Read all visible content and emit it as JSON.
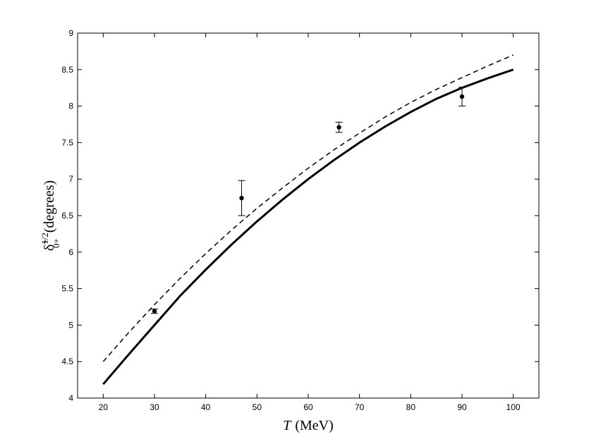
{
  "chart_data": {
    "type": "line",
    "xlabel": "T",
    "xlabel_unit": "(MeV)",
    "ylabel_symbol": "δ̃",
    "ylabel_superscript": "1/2",
    "ylabel_subscript": "0+",
    "ylabel_unit": "(degrees)",
    "xlim": [
      15,
      105
    ],
    "ylim": [
      4,
      9
    ],
    "xticks": [
      20,
      30,
      40,
      50,
      60,
      70,
      80,
      90,
      100
    ],
    "yticks": [
      4,
      4.5,
      5,
      5.5,
      6,
      6.5,
      7,
      7.5,
      8,
      8.5,
      9
    ],
    "grid": false,
    "series": [
      {
        "style": "solid",
        "x": [
          20,
          25,
          30,
          35,
          40,
          45,
          50,
          55,
          60,
          65,
          70,
          75,
          80,
          85,
          90,
          95,
          100
        ],
        "y": [
          4.19,
          4.6,
          5.0,
          5.4,
          5.76,
          6.1,
          6.42,
          6.72,
          7.0,
          7.26,
          7.5,
          7.72,
          7.92,
          8.1,
          8.25,
          8.38,
          8.5
        ]
      },
      {
        "style": "dashed",
        "x": [
          20,
          25,
          30,
          35,
          40,
          45,
          50,
          55,
          60,
          65,
          70,
          75,
          80,
          85,
          90,
          95,
          100
        ],
        "y": [
          4.5,
          4.9,
          5.28,
          5.64,
          5.98,
          6.3,
          6.6,
          6.88,
          7.15,
          7.4,
          7.63,
          7.85,
          8.05,
          8.23,
          8.39,
          8.55,
          8.7
        ]
      }
    ],
    "data_points": [
      {
        "x": 30,
        "y": 5.19,
        "err_low": 0.03,
        "err_high": 0.03
      },
      {
        "x": 47,
        "y": 6.74,
        "err_low": 0.24,
        "err_high": 0.24
      },
      {
        "x": 66,
        "y": 7.71,
        "err_low": 0.07,
        "err_high": 0.07
      },
      {
        "x": 90,
        "y": 8.13,
        "err_low": 0.13,
        "err_high": 0.13
      }
    ]
  }
}
